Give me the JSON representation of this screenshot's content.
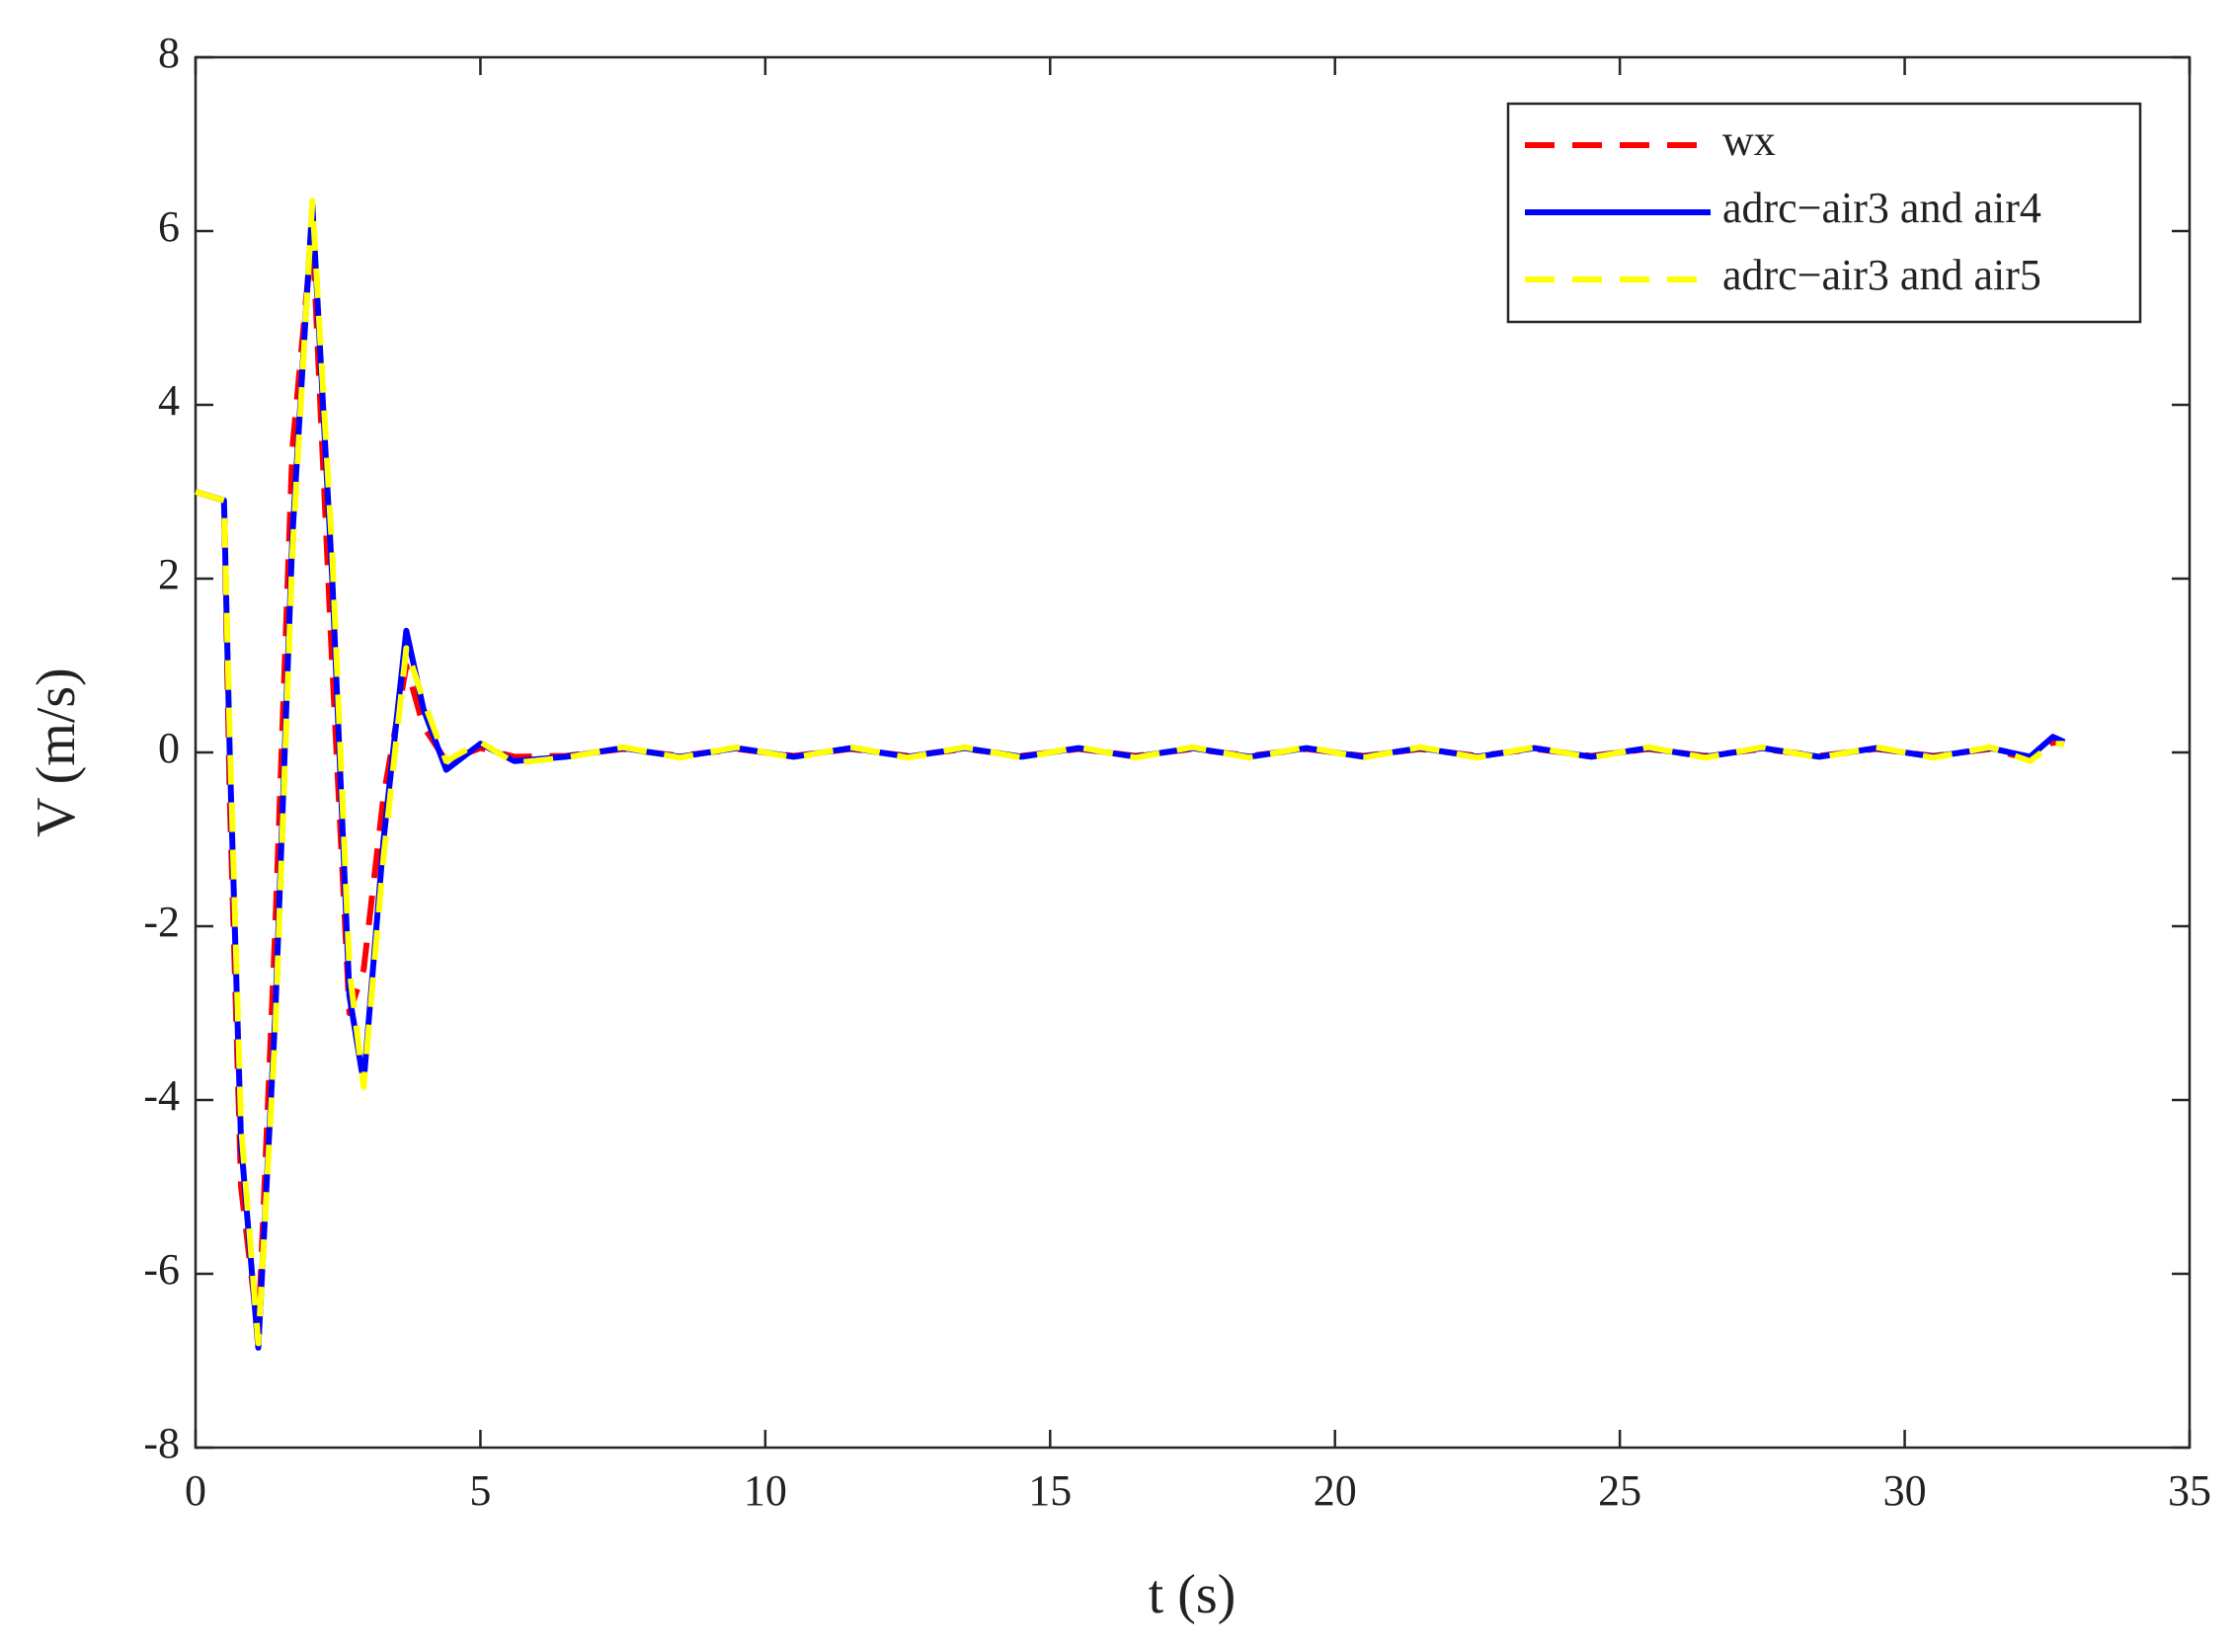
{
  "chart_data": {
    "type": "line",
    "xlabel": "t (s)",
    "ylabel": "V (m/s)",
    "x": [
      0,
      0.5,
      0.6,
      0.8,
      1.1,
      1.4,
      1.7,
      2.05,
      2.4,
      2.7,
      2.95,
      3.3,
      3.7,
      4.0,
      4.4,
      5.0,
      5.6,
      6.5,
      7.5,
      8.5,
      9.5,
      10.5,
      11.5,
      12.5,
      13.5,
      14.5,
      15.5,
      16.5,
      17.5,
      18.5,
      19.5,
      20.5,
      21.5,
      22.5,
      23.5,
      24.5,
      25.5,
      26.5,
      27.5,
      28.5,
      29.5,
      30.5,
      31.5,
      32.2,
      32.6,
      32.8
    ],
    "series": [
      {
        "name": "wx",
        "color": "#ff0000",
        "linestyle": "dashed",
        "values": [
          3,
          2.9,
          -0.5,
          -5,
          -6.7,
          -2,
          3.5,
          6.0,
          1,
          -3,
          -2.5,
          -0.5,
          1.0,
          0.3,
          -0.1,
          0.05,
          -0.05,
          -0.04,
          0.04,
          -0.04,
          0.04,
          -0.04,
          0.04,
          -0.04,
          0.04,
          -0.04,
          0.04,
          -0.04,
          0.04,
          -0.04,
          0.04,
          -0.04,
          0.04,
          -0.04,
          0.04,
          -0.04,
          0.04,
          -0.04,
          0.04,
          -0.04,
          0.04,
          -0.04,
          0.04,
          -0.08,
          0.12,
          0.1
        ]
      },
      {
        "name": "adrc−air3 and air4",
        "color": "#0000ff",
        "linestyle": "solid",
        "values": [
          3,
          2.9,
          0,
          -4.5,
          -6.85,
          -3,
          2.5,
          6.3,
          2,
          -2.8,
          -3.8,
          -1,
          1.4,
          0.5,
          -0.2,
          0.1,
          -0.1,
          -0.05,
          0.05,
          -0.05,
          0.05,
          -0.05,
          0.05,
          -0.05,
          0.05,
          -0.05,
          0.05,
          -0.05,
          0.05,
          -0.05,
          0.05,
          -0.05,
          0.05,
          -0.05,
          0.05,
          -0.05,
          0.05,
          -0.05,
          0.05,
          -0.05,
          0.05,
          -0.05,
          0.05,
          -0.05,
          0.18,
          0.12
        ]
      },
      {
        "name": "adrc−air3 and air5",
        "color": "#ffff00",
        "linestyle": "dashed",
        "values": [
          3,
          2.9,
          0.2,
          -4.3,
          -6.8,
          -3.2,
          2.3,
          6.35,
          2.3,
          -2.5,
          -3.85,
          -1.2,
          1.2,
          0.6,
          -0.1,
          0.12,
          -0.12,
          -0.06,
          0.06,
          -0.06,
          0.06,
          -0.06,
          0.06,
          -0.06,
          0.06,
          -0.06,
          0.06,
          -0.06,
          0.06,
          -0.06,
          0.06,
          -0.06,
          0.06,
          -0.06,
          0.06,
          -0.06,
          0.06,
          -0.06,
          0.06,
          -0.06,
          0.06,
          -0.06,
          0.06,
          -0.1,
          0.1,
          0.1
        ]
      }
    ],
    "xlim": [
      0,
      35
    ],
    "xticks": [
      0,
      5,
      10,
      15,
      20,
      25,
      30,
      35
    ],
    "ylim": [
      -8,
      8
    ],
    "yticks": [
      -8,
      -6,
      -4,
      -2,
      0,
      2,
      4,
      6,
      8
    ],
    "grid": false,
    "legend": "upper right"
  }
}
